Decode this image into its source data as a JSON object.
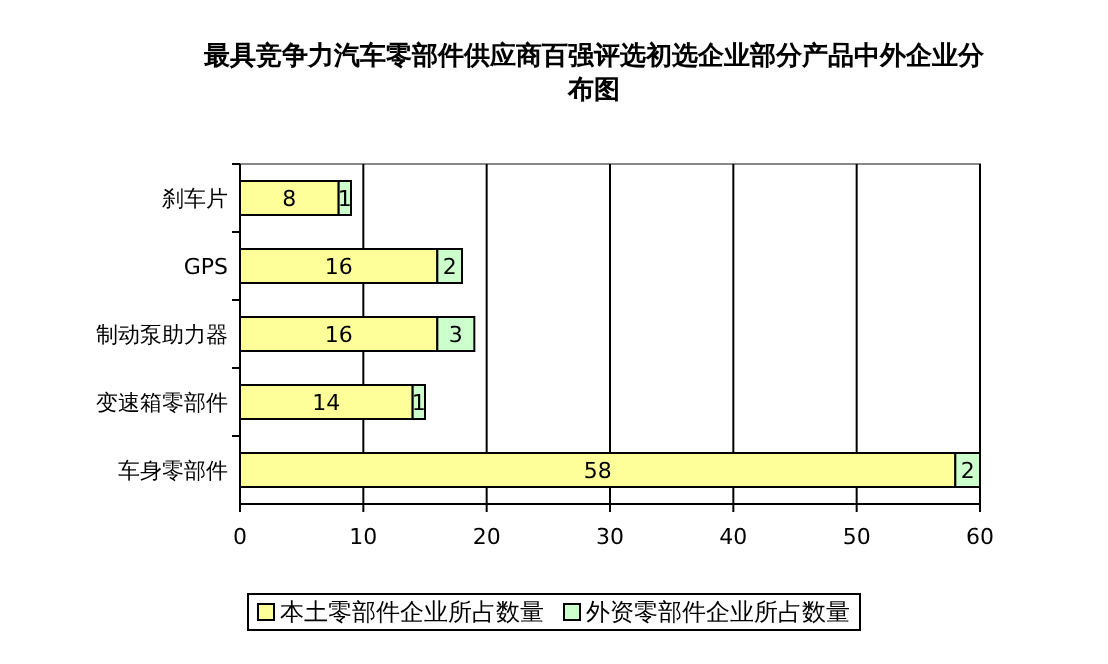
{
  "chart_data": {
    "type": "bar",
    "orientation": "horizontal",
    "stacked": true,
    "title": "最具竞争力汽车零部件供应商百强评选初选企业部分产品中外企业分布图",
    "categories": [
      "刹车片",
      "GPS",
      "制动泵助力器",
      "变速箱零部件",
      "车身零部件"
    ],
    "series": [
      {
        "name": "本土零部件企业所占数量",
        "color": "#ffff99",
        "values": [
          8,
          16,
          16,
          14,
          58
        ]
      },
      {
        "name": "外资零部件企业所占数量",
        "color": "#ccffcc",
        "values": [
          1,
          2,
          3,
          1,
          2
        ]
      }
    ],
    "xlim": [
      0,
      60
    ],
    "xticks": [
      0,
      10,
      20,
      30,
      40,
      50,
      60
    ],
    "grid": "x",
    "legend": "bottom",
    "data_labels": true
  }
}
